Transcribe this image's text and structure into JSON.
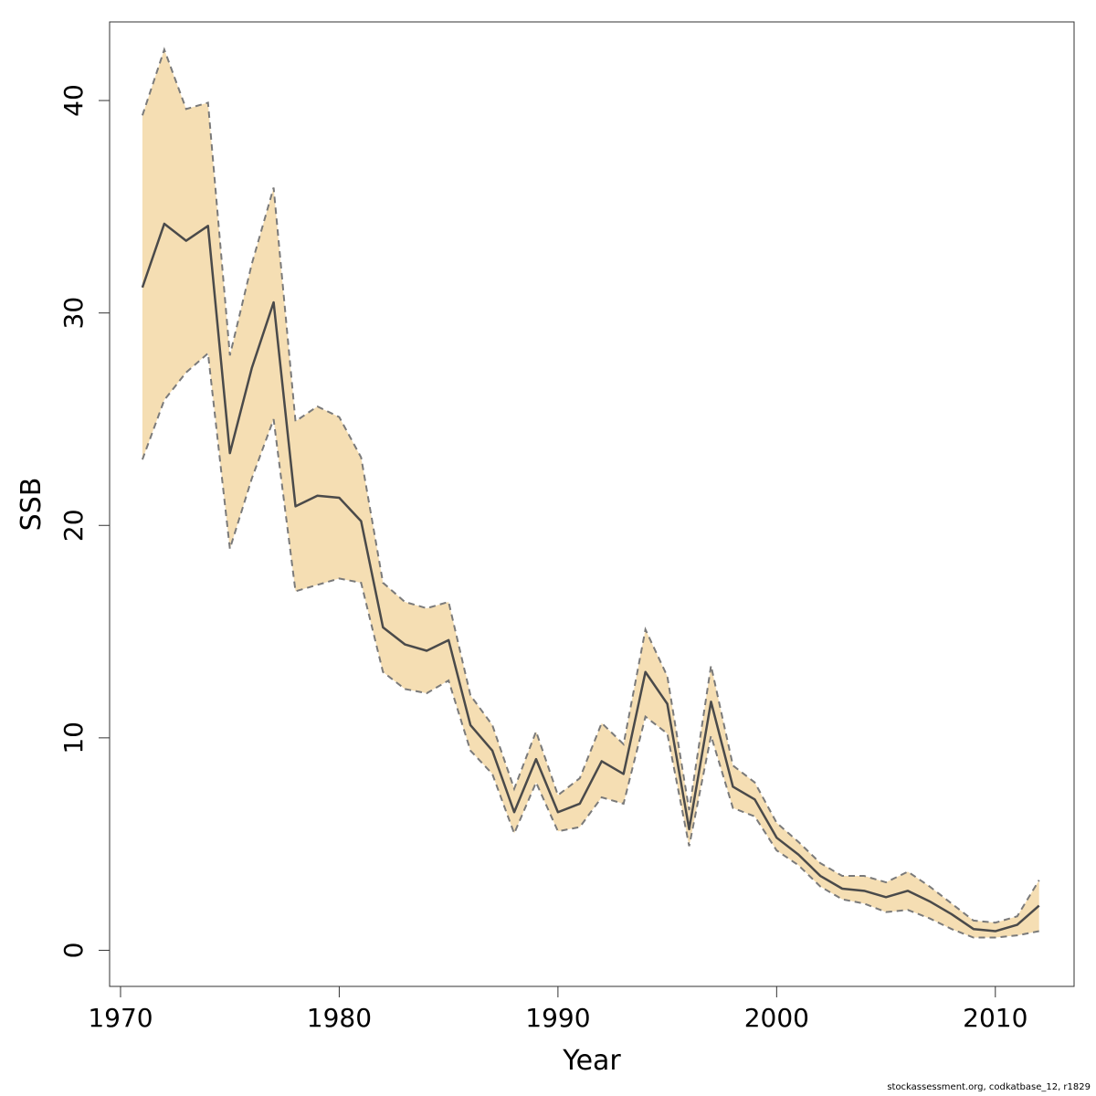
{
  "chart_data": {
    "type": "area",
    "xlabel": "Year",
    "ylabel": "SSB",
    "xlim": [
      1969.5,
      2013.6
    ],
    "ylim": [
      -1.7,
      43.7
    ],
    "x_ticks": [
      1970,
      1980,
      1990,
      2000,
      2010
    ],
    "y_ticks": [
      0,
      10,
      20,
      30,
      40
    ],
    "grid": false,
    "colors": {
      "band_fill": "#f5deb3",
      "band_edge": "#7a7a7a",
      "line": "#4a4a4a"
    },
    "x": [
      1971,
      1972,
      1973,
      1974,
      1975,
      1976,
      1977,
      1978,
      1979,
      1980,
      1981,
      1982,
      1983,
      1984,
      1985,
      1986,
      1987,
      1988,
      1989,
      1990,
      1991,
      1992,
      1993,
      1994,
      1995,
      1996,
      1997,
      1998,
      1999,
      2000,
      2001,
      2002,
      2003,
      2004,
      2005,
      2006,
      2007,
      2008,
      2009,
      2010,
      2011,
      2012
    ],
    "series": [
      {
        "type": "line",
        "values": [
          31.2,
          34.2,
          33.4,
          34.1,
          23.4,
          27.4,
          30.5,
          20.9,
          21.4,
          21.3,
          20.2,
          15.2,
          14.4,
          14.1,
          14.6,
          10.6,
          9.4,
          6.5,
          9.0,
          6.5,
          6.9,
          8.9,
          8.3,
          13.1,
          11.6,
          5.7,
          11.7,
          7.7,
          7.1,
          5.3,
          4.5,
          3.5,
          2.9,
          2.8,
          2.5,
          2.8,
          2.3,
          1.7,
          1.0,
          0.9,
          1.2,
          2.1
        ]
      },
      {
        "type": "band-upper",
        "values": [
          39.3,
          42.4,
          39.6,
          39.9,
          28.0,
          32.3,
          35.9,
          24.9,
          25.6,
          25.1,
          23.2,
          17.3,
          16.4,
          16.1,
          16.4,
          12.0,
          10.6,
          7.6,
          10.3,
          7.3,
          8.1,
          10.7,
          9.7,
          15.1,
          12.9,
          6.6,
          13.4,
          8.7,
          7.9,
          6.0,
          5.1,
          4.1,
          3.5,
          3.5,
          3.2,
          3.7,
          3.0,
          2.2,
          1.4,
          1.3,
          1.6,
          3.3
        ]
      },
      {
        "type": "band-lower",
        "values": [
          23.1,
          25.9,
          27.2,
          28.1,
          18.9,
          22.2,
          25.0,
          16.9,
          17.2,
          17.5,
          17.3,
          13.1,
          12.3,
          12.1,
          12.7,
          9.4,
          8.3,
          5.5,
          7.9,
          5.6,
          5.8,
          7.2,
          6.9,
          11.0,
          10.2,
          4.9,
          10.1,
          6.7,
          6.3,
          4.7,
          4.0,
          3.0,
          2.4,
          2.2,
          1.8,
          1.9,
          1.5,
          1.0,
          0.6,
          0.6,
          0.7,
          0.9
        ]
      }
    ]
  },
  "footer": {
    "note": "stockassessment.org, codkatbase_12, r1829"
  }
}
